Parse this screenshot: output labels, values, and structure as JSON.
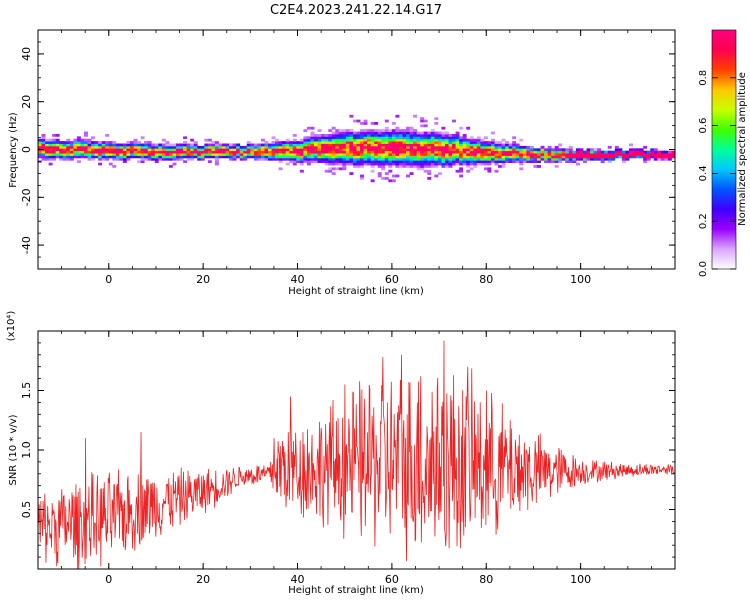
{
  "title": "C2E4.2023.241.22.14.G17",
  "chart_data": [
    {
      "type": "heatmap",
      "xlabel": "Height of straight line (km)",
      "ylabel": "Frequency (Hz)",
      "xlim": [
        -15,
        120
      ],
      "ylim": [
        -50,
        50
      ],
      "x_ticks": [
        0,
        20,
        40,
        60,
        80,
        100
      ],
      "y_ticks": [
        -40,
        -20,
        0,
        20,
        40
      ],
      "colorbar": {
        "label": "Normalized spectral amplitude",
        "range": [
          0.0,
          1.0
        ],
        "ticks": [
          0.0,
          0.2,
          0.4,
          0.6,
          0.8
        ],
        "tick_labels": [
          "0.0",
          "0.2",
          "0.4",
          "0.6",
          "0.8"
        ],
        "colormap": [
          "#ffffff",
          "#d9a6ff",
          "#9a00ff",
          "#3f00ff",
          "#0055ff",
          "#00c8ff",
          "#00ff9a",
          "#3fff00",
          "#c8ff00",
          "#ffc800",
          "#ff3f00",
          "#ff0050",
          "#ff007f"
        ]
      },
      "band_center_hz": [
        [
          -15,
          0.5
        ],
        [
          0,
          -0.5
        ],
        [
          20,
          -1
        ],
        [
          40,
          -0.5
        ],
        [
          50,
          0.5
        ],
        [
          60,
          1
        ],
        [
          70,
          0
        ],
        [
          80,
          -1
        ],
        [
          90,
          -2
        ],
        [
          100,
          -2.5
        ],
        [
          110,
          -2
        ],
        [
          118,
          -2
        ]
      ],
      "band_halfwidth_hz": [
        [
          -15,
          3.5
        ],
        [
          0,
          3
        ],
        [
          20,
          2.5
        ],
        [
          30,
          2.5
        ],
        [
          40,
          4
        ],
        [
          50,
          6
        ],
        [
          60,
          6.5
        ],
        [
          70,
          6
        ],
        [
          80,
          4
        ],
        [
          90,
          2.5
        ],
        [
          100,
          2
        ],
        [
          118,
          1.5
        ]
      ]
    },
    {
      "type": "line",
      "xlabel": "Height of straight line (km)",
      "ylabel": "SNR (10 * v/v)",
      "y_multiplier": "(x10⁴)",
      "xlim": [
        -15,
        120
      ],
      "ylim": [
        0,
        2.0
      ],
      "x_ticks": [
        0,
        20,
        40,
        60,
        80,
        100
      ],
      "y_ticks": [
        0.5,
        1.0,
        1.5
      ],
      "y_tick_labels": [
        "0.5",
        "1.0",
        "1.5"
      ],
      "color": "#ee2222",
      "envelope_x": [
        -15,
        -5,
        0,
        10,
        20,
        28,
        34,
        36,
        45,
        55,
        62,
        70,
        75,
        85,
        90,
        100,
        110,
        120
      ],
      "envelope_mean": [
        0.35,
        0.4,
        0.42,
        0.55,
        0.65,
        0.78,
        0.8,
        0.85,
        0.85,
        0.9,
        0.9,
        0.9,
        0.88,
        0.85,
        0.82,
        0.82,
        0.83,
        0.84
      ],
      "envelope_amp": [
        0.3,
        0.4,
        0.4,
        0.3,
        0.2,
        0.1,
        0.1,
        0.4,
        0.5,
        0.75,
        0.8,
        0.9,
        0.8,
        0.5,
        0.35,
        0.12,
        0.06,
        0.05
      ],
      "peaks": [
        [
          38.5,
          1.45
        ],
        [
          50,
          1.55
        ],
        [
          58,
          1.78
        ],
        [
          62,
          1.8
        ],
        [
          66,
          1.62
        ],
        [
          71,
          1.92
        ],
        [
          76,
          1.7
        ],
        [
          80,
          1.5
        ],
        [
          -5,
          1.1
        ],
        [
          6.8,
          1.15
        ],
        [
          35,
          1.1
        ]
      ]
    }
  ]
}
